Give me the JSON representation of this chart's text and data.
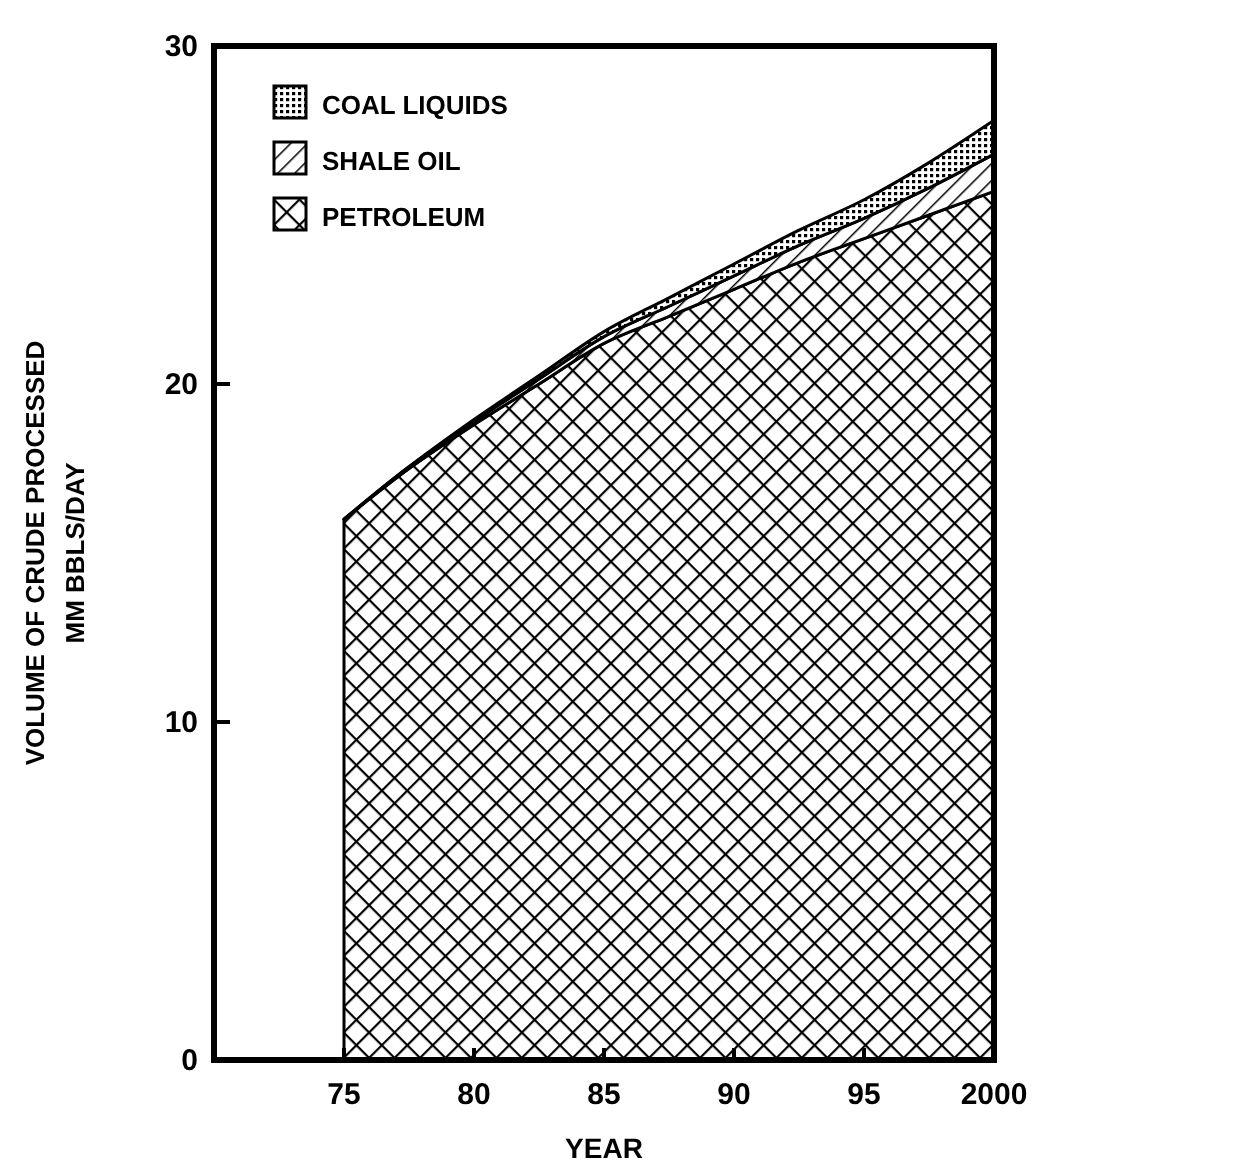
{
  "chart_data": {
    "type": "area",
    "stacked": true,
    "xlabel": "YEAR",
    "ylabel": "VOLUME OF CRUDE PROCESSED\nMM BBLS/DAY",
    "x": [
      1975,
      1977.5,
      1980,
      1982.5,
      1985,
      1987.5,
      1990,
      1992.5,
      1995,
      1997.5,
      2000
    ],
    "series": [
      {
        "name": "PETROLEUM",
        "color": "#000000",
        "values": [
          16,
          17.5,
          18.8,
          20.0,
          21.2,
          22.0,
          22.8,
          23.6,
          24.3,
          25.0,
          25.7
        ]
      },
      {
        "name": "SHALE OIL",
        "color": "#000000",
        "values": [
          0,
          0.05,
          0.1,
          0.15,
          0.2,
          0.3,
          0.4,
          0.5,
          0.6,
          0.8,
          1.1
        ]
      },
      {
        "name": "COAL LIQUIDS",
        "color": "#000000",
        "values": [
          0,
          0,
          0.05,
          0.1,
          0.15,
          0.25,
          0.35,
          0.45,
          0.55,
          0.75,
          1.0
        ]
      }
    ],
    "xlim": [
      1970,
      2000
    ],
    "xticks": [
      {
        "value": 1975,
        "label": "75"
      },
      {
        "value": 1980,
        "label": "80"
      },
      {
        "value": 1985,
        "label": "85"
      },
      {
        "value": 1990,
        "label": "90"
      },
      {
        "value": 1995,
        "label": "95"
      },
      2000
    ],
    "ylim": [
      0,
      30
    ],
    "yticks": [
      0,
      10,
      20,
      30
    ],
    "grid": false,
    "legend": "top left"
  }
}
